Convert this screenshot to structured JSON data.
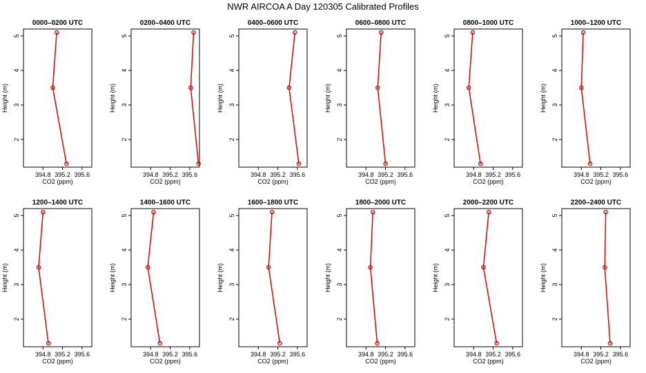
{
  "title": "NWR AIRCOA A  Day 120305  Calibrated Profiles",
  "chart_data": {
    "type": "line",
    "layout": {
      "rows": 2,
      "cols": 6
    },
    "xlabel": "CO2 (ppm)",
    "ylabel": "Height (m)",
    "xlim": [
      394.4,
      395.8
    ],
    "ylim": [
      1.2,
      5.2
    ],
    "x_ticks": [
      394.8,
      395.2,
      395.6
    ],
    "y_ticks": [
      2,
      3,
      4,
      5
    ],
    "series_color": "#e00000",
    "heights": [
      1.3,
      3.5,
      5.1
    ],
    "panels": [
      {
        "title": "0000–0200 UTC",
        "co2": [
          395.28,
          395.0,
          395.08
        ]
      },
      {
        "title": "0200–0400 UTC",
        "co2": [
          395.78,
          395.62,
          395.68
        ]
      },
      {
        "title": "0400–0600 UTC",
        "co2": [
          395.63,
          395.43,
          395.55
        ]
      },
      {
        "title": "0600–0800 UTC",
        "co2": [
          395.2,
          395.04,
          395.11
        ]
      },
      {
        "title": "0800–1000 UTC",
        "co2": [
          394.94,
          394.7,
          394.78
        ]
      },
      {
        "title": "1000–1200 UTC",
        "co2": [
          394.98,
          394.8,
          394.84
        ]
      },
      {
        "title": "1200–1400 UTC",
        "co2": [
          394.91,
          394.71,
          394.8
        ]
      },
      {
        "title": "1400–1600 UTC",
        "co2": [
          394.99,
          394.74,
          394.86
        ]
      },
      {
        "title": "1600–1800 UTC",
        "co2": [
          395.24,
          395.01,
          395.08
        ]
      },
      {
        "title": "1800–2000 UTC",
        "co2": [
          395.03,
          394.89,
          394.94
        ]
      },
      {
        "title": "2000–2200 UTC",
        "co2": [
          395.27,
          395.0,
          395.11
        ]
      },
      {
        "title": "2200–2400 UTC",
        "co2": [
          395.39,
          395.28,
          395.3
        ]
      }
    ]
  }
}
